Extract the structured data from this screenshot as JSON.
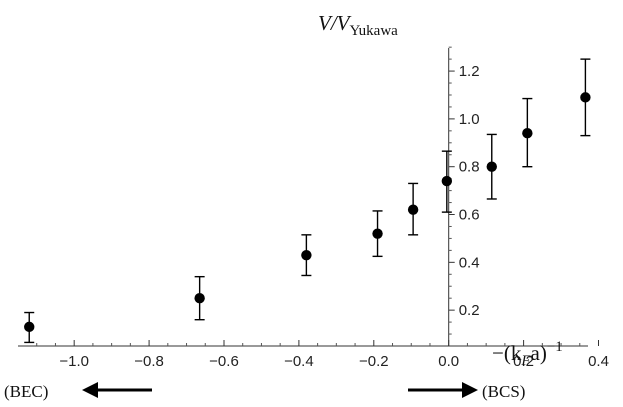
{
  "chart_data": {
    "type": "scatter",
    "ylabel": {
      "main": "V/V",
      "sub": "Yukawa"
    },
    "xlabel": {
      "prefix": "−(k",
      "sub": "F",
      "suffix": "a)",
      "sup": "−1"
    },
    "xlim": [
      -1.15,
      0.42
    ],
    "ylim": [
      0.05,
      1.33
    ],
    "x_ticks": [
      -1.0,
      -0.8,
      -0.6,
      -0.4,
      -0.2,
      0.0,
      0.2,
      0.4
    ],
    "x_tick_labels": [
      "−1.0",
      "−0.8",
      "−0.6",
      "−0.4",
      "−0.2",
      "0.0",
      "0.2",
      "0.4"
    ],
    "y_ticks": [
      0.2,
      0.4,
      0.6,
      0.8,
      1.0,
      1.2
    ],
    "y_tick_labels": [
      "0.2",
      "0.4",
      "0.6",
      "0.8",
      "1.0",
      "1.2"
    ],
    "points": [
      {
        "x": -1.12,
        "y": 0.13,
        "err_lo": 0.065,
        "err_hi": 0.19
      },
      {
        "x": -0.665,
        "y": 0.25,
        "err_lo": 0.16,
        "err_hi": 0.34
      },
      {
        "x": -0.38,
        "y": 0.43,
        "err_lo": 0.345,
        "err_hi": 0.515
      },
      {
        "x": -0.19,
        "y": 0.52,
        "err_lo": 0.425,
        "err_hi": 0.615
      },
      {
        "x": -0.095,
        "y": 0.62,
        "err_lo": 0.515,
        "err_hi": 0.73
      },
      {
        "x": -0.005,
        "y": 0.74,
        "err_lo": 0.61,
        "err_hi": 0.865
      },
      {
        "x": 0.115,
        "y": 0.8,
        "err_lo": 0.665,
        "err_hi": 0.935
      },
      {
        "x": 0.21,
        "y": 0.94,
        "err_lo": 0.8,
        "err_hi": 1.085
      },
      {
        "x": 0.365,
        "y": 1.09,
        "err_lo": 0.93,
        "err_hi": 1.25
      }
    ],
    "annotations": {
      "left": "(BEC)",
      "right": "(BCS)"
    },
    "colors": {
      "marker": "#000000",
      "axis": "#333333"
    }
  }
}
